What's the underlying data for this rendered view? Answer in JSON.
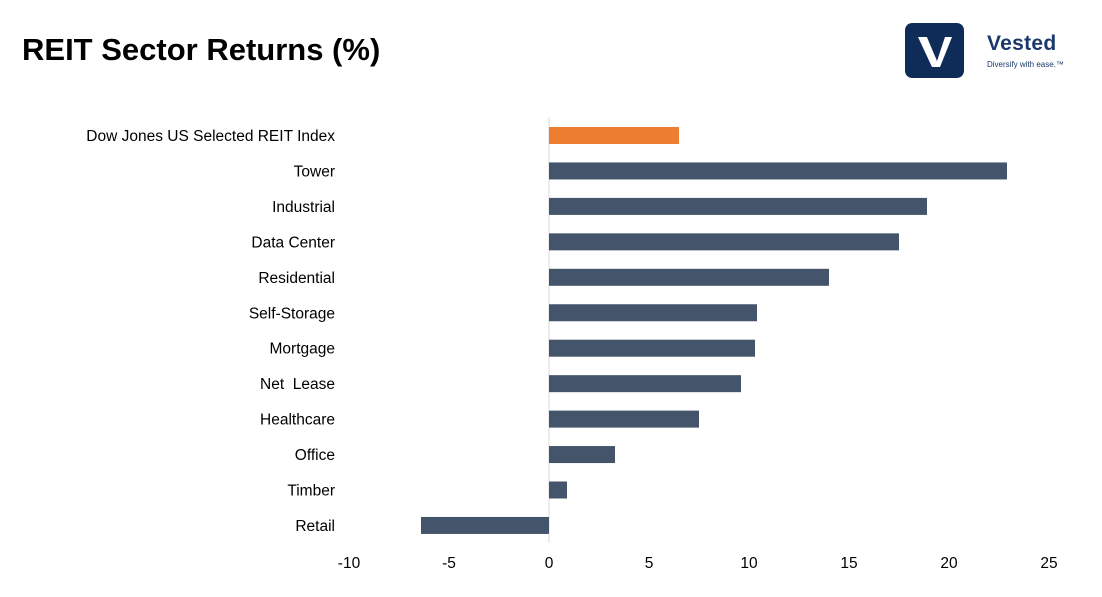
{
  "colors": {
    "index_bar": "#ED7D31",
    "sector_bar": "#44546A",
    "axis": "#D9D9D9",
    "logo_bg": "#0E2C57",
    "logo_word": "#1B3A6B",
    "logo_tag": "#1B3A6B"
  },
  "logo": {
    "word": "Vested",
    "tagline": "Diversify with ease.™",
    "icon": "vested-v-icon"
  },
  "chart_data": {
    "type": "bar",
    "orientation": "horizontal",
    "title": "REIT Sector Returns (%)",
    "categories": [
      "Dow Jones US Selected REIT Index",
      "Tower",
      "Industrial",
      "Data Center",
      "Residential",
      "Self-Storage",
      "Mortgage",
      "Net  Lease",
      "Healthcare",
      "Office",
      "Timber",
      "Retail"
    ],
    "values": [
      6.5,
      22.9,
      18.9,
      17.5,
      14.0,
      10.4,
      10.3,
      9.6,
      7.5,
      3.3,
      0.9,
      -6.4
    ],
    "highlight_index": 0,
    "xlim": [
      -10,
      25
    ],
    "xticks": [
      -10,
      -5,
      0,
      5,
      10,
      15,
      20,
      25
    ],
    "xlabel": "",
    "ylabel": "",
    "grid": false,
    "legend": "none"
  }
}
